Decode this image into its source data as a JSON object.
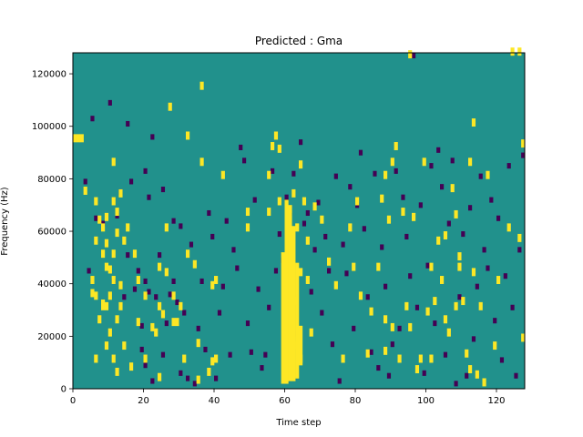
{
  "chart_data": {
    "type": "heatmap",
    "title": "Predicted : Gma",
    "xlabel": "Time step",
    "ylabel": "Frequency (Hz)",
    "xlim": [
      0,
      128
    ],
    "ylim": [
      0,
      128000
    ],
    "xticks": [
      0,
      20,
      40,
      60,
      80,
      100,
      120
    ],
    "yticks": [
      0,
      20000,
      40000,
      60000,
      80000,
      100000,
      120000
    ],
    "colormap": "viridis",
    "colors": {
      "background": "#21918c",
      "high": "#fde725",
      "low": "#440154"
    },
    "n_time_steps": 128,
    "n_freq_bins": 128,
    "grid": false,
    "background_level": 0.5,
    "high_cells": [
      [
        0,
        94
      ],
      [
        1,
        94
      ],
      [
        2,
        94
      ],
      [
        3,
        74
      ],
      [
        5,
        35
      ],
      [
        5,
        40
      ],
      [
        6,
        10
      ],
      [
        6,
        34
      ],
      [
        6,
        55
      ],
      [
        6,
        70
      ],
      [
        7,
        25
      ],
      [
        7,
        63
      ],
      [
        8,
        30
      ],
      [
        8,
        31
      ],
      [
        8,
        50
      ],
      [
        8,
        60
      ],
      [
        9,
        15
      ],
      [
        9,
        30
      ],
      [
        9,
        45
      ],
      [
        9,
        54
      ],
      [
        9,
        64
      ],
      [
        10,
        20
      ],
      [
        10,
        34
      ],
      [
        10,
        44
      ],
      [
        11,
        10
      ],
      [
        11,
        40
      ],
      [
        11,
        50
      ],
      [
        11,
        70
      ],
      [
        11,
        85
      ],
      [
        12,
        5
      ],
      [
        12,
        25
      ],
      [
        12,
        58
      ],
      [
        12,
        66
      ],
      [
        13,
        30
      ],
      [
        13,
        38
      ],
      [
        13,
        73
      ],
      [
        14,
        15
      ],
      [
        14,
        55
      ],
      [
        15,
        60
      ],
      [
        16,
        7
      ],
      [
        17,
        50
      ],
      [
        18,
        24
      ],
      [
        18,
        40
      ],
      [
        20,
        10
      ],
      [
        20,
        34
      ],
      [
        22,
        22
      ],
      [
        23,
        20
      ],
      [
        24,
        3
      ],
      [
        24,
        30
      ],
      [
        24,
        45
      ],
      [
        25,
        27
      ],
      [
        26,
        43
      ],
      [
        26,
        60
      ],
      [
        27,
        106
      ],
      [
        28,
        24
      ],
      [
        28,
        34
      ],
      [
        29,
        24
      ],
      [
        30,
        30
      ],
      [
        31,
        10
      ],
      [
        32,
        50
      ],
      [
        32,
        95
      ],
      [
        34,
        46
      ],
      [
        35,
        2
      ],
      [
        35,
        16
      ],
      [
        36,
        85
      ],
      [
        36,
        114
      ],
      [
        38,
        5
      ],
      [
        39,
        9
      ],
      [
        39,
        38
      ],
      [
        40,
        10
      ],
      [
        40,
        40
      ],
      [
        42,
        80
      ],
      [
        49,
        66
      ],
      [
        49,
        60
      ],
      [
        55,
        80
      ],
      [
        55,
        66
      ],
      [
        56,
        91
      ],
      [
        57,
        95
      ],
      [
        58,
        90
      ],
      [
        58,
        70
      ],
      [
        60,
        20
      ],
      [
        60,
        16
      ],
      [
        61,
        48
      ],
      [
        61,
        38
      ],
      [
        61,
        67
      ],
      [
        62,
        73
      ],
      [
        62,
        32
      ],
      [
        63,
        60
      ],
      [
        63,
        15
      ],
      [
        64,
        84
      ],
      [
        64,
        10
      ],
      [
        64,
        43
      ],
      [
        65,
        70
      ],
      [
        66,
        55
      ],
      [
        66,
        40
      ],
      [
        67,
        20
      ],
      [
        68,
        68
      ],
      [
        70,
        63
      ],
      [
        72,
        47
      ],
      [
        74,
        38
      ],
      [
        76,
        10
      ],
      [
        78,
        60
      ],
      [
        79,
        45
      ],
      [
        80,
        70
      ],
      [
        81,
        34
      ],
      [
        83,
        12
      ],
      [
        84,
        28
      ],
      [
        86,
        45
      ],
      [
        87,
        71
      ],
      [
        88,
        13
      ],
      [
        88,
        25
      ],
      [
        88,
        80
      ],
      [
        89,
        63
      ],
      [
        90,
        85
      ],
      [
        90,
        22
      ],
      [
        91,
        91
      ],
      [
        92,
        10
      ],
      [
        93,
        66
      ],
      [
        94,
        30
      ],
      [
        95,
        22
      ],
      [
        95,
        126
      ],
      [
        96,
        64
      ],
      [
        97,
        6
      ],
      [
        98,
        10
      ],
      [
        99,
        85
      ],
      [
        100,
        28
      ],
      [
        101,
        10
      ],
      [
        101,
        45
      ],
      [
        102,
        32
      ],
      [
        103,
        55
      ],
      [
        104,
        40
      ],
      [
        105,
        57
      ],
      [
        105,
        25
      ],
      [
        106,
        20
      ],
      [
        107,
        75
      ],
      [
        108,
        65
      ],
      [
        108,
        30
      ],
      [
        109,
        45
      ],
      [
        109,
        49
      ],
      [
        110,
        32
      ],
      [
        111,
        12
      ],
      [
        112,
        85
      ],
      [
        112,
        6
      ],
      [
        113,
        100
      ],
      [
        113,
        43
      ],
      [
        114,
        4
      ],
      [
        115,
        30
      ],
      [
        116,
        1
      ],
      [
        117,
        80
      ],
      [
        119,
        15
      ],
      [
        120,
        40
      ],
      [
        123,
        60
      ],
      [
        124,
        127
      ],
      [
        126,
        127
      ],
      [
        126,
        56
      ],
      [
        127,
        18
      ],
      [
        127,
        92
      ]
    ],
    "high_column_runs": [
      [
        59,
        2,
        52
      ],
      [
        60,
        2,
        72
      ],
      [
        61,
        3,
        68
      ],
      [
        62,
        3,
        62
      ],
      [
        63,
        4,
        48
      ],
      [
        64,
        9,
        24
      ]
    ],
    "low_cells": [
      [
        3,
        78
      ],
      [
        4,
        44
      ],
      [
        5,
        102
      ],
      [
        6,
        64
      ],
      [
        8,
        62
      ],
      [
        10,
        108
      ],
      [
        11,
        40
      ],
      [
        12,
        65
      ],
      [
        13,
        74
      ],
      [
        14,
        34
      ],
      [
        15,
        50
      ],
      [
        15,
        100
      ],
      [
        16,
        78
      ],
      [
        17,
        37
      ],
      [
        18,
        44
      ],
      [
        19,
        14
      ],
      [
        19,
        23
      ],
      [
        20,
        40
      ],
      [
        20,
        8
      ],
      [
        20,
        82
      ],
      [
        21,
        72
      ],
      [
        21,
        36
      ],
      [
        22,
        95
      ],
      [
        22,
        2
      ],
      [
        23,
        34
      ],
      [
        24,
        50
      ],
      [
        25,
        12
      ],
      [
        25,
        75
      ],
      [
        26,
        24
      ],
      [
        27,
        35
      ],
      [
        28,
        40
      ],
      [
        28,
        63
      ],
      [
        29,
        32
      ],
      [
        30,
        5
      ],
      [
        30,
        61
      ],
      [
        31,
        28
      ],
      [
        32,
        3
      ],
      [
        33,
        54
      ],
      [
        34,
        1
      ],
      [
        35,
        22
      ],
      [
        36,
        40
      ],
      [
        37,
        14
      ],
      [
        38,
        66
      ],
      [
        39,
        57
      ],
      [
        40,
        3
      ],
      [
        41,
        28
      ],
      [
        42,
        38
      ],
      [
        43,
        63
      ],
      [
        44,
        12
      ],
      [
        45,
        52
      ],
      [
        46,
        45
      ],
      [
        47,
        91
      ],
      [
        48,
        86
      ],
      [
        49,
        24
      ],
      [
        50,
        13
      ],
      [
        51,
        71
      ],
      [
        52,
        37
      ],
      [
        53,
        7
      ],
      [
        54,
        12
      ],
      [
        55,
        30
      ],
      [
        56,
        82
      ],
      [
        57,
        44
      ],
      [
        58,
        58
      ],
      [
        59,
        48
      ],
      [
        60,
        72
      ],
      [
        61,
        66
      ],
      [
        62,
        81
      ],
      [
        63,
        20
      ],
      [
        64,
        93
      ],
      [
        65,
        62
      ],
      [
        66,
        66
      ],
      [
        67,
        36
      ],
      [
        68,
        52
      ],
      [
        69,
        70
      ],
      [
        70,
        28
      ],
      [
        71,
        57
      ],
      [
        72,
        44
      ],
      [
        73,
        16
      ],
      [
        74,
        80
      ],
      [
        75,
        2
      ],
      [
        76,
        54
      ],
      [
        77,
        43
      ],
      [
        78,
        76
      ],
      [
        79,
        22
      ],
      [
        80,
        69
      ],
      [
        81,
        89
      ],
      [
        82,
        60
      ],
      [
        83,
        34
      ],
      [
        84,
        13
      ],
      [
        85,
        81
      ],
      [
        86,
        7
      ],
      [
        87,
        53
      ],
      [
        88,
        38
      ],
      [
        89,
        4
      ],
      [
        90,
        16
      ],
      [
        91,
        82
      ],
      [
        92,
        22
      ],
      [
        93,
        72
      ],
      [
        94,
        57
      ],
      [
        95,
        42
      ],
      [
        96,
        126
      ],
      [
        97,
        30
      ],
      [
        98,
        69
      ],
      [
        99,
        5
      ],
      [
        100,
        46
      ],
      [
        101,
        84
      ],
      [
        102,
        24
      ],
      [
        103,
        90
      ],
      [
        104,
        76
      ],
      [
        105,
        12
      ],
      [
        106,
        62
      ],
      [
        107,
        86
      ],
      [
        108,
        1
      ],
      [
        109,
        34
      ],
      [
        110,
        58
      ],
      [
        111,
        4
      ],
      [
        112,
        68
      ],
      [
        113,
        18
      ],
      [
        114,
        38
      ],
      [
        115,
        80
      ],
      [
        116,
        52
      ],
      [
        117,
        45
      ],
      [
        118,
        71
      ],
      [
        119,
        25
      ],
      [
        120,
        64
      ],
      [
        121,
        10
      ],
      [
        122,
        42
      ],
      [
        123,
        84
      ],
      [
        124,
        30
      ],
      [
        125,
        4
      ],
      [
        126,
        52
      ],
      [
        127,
        88
      ]
    ]
  }
}
